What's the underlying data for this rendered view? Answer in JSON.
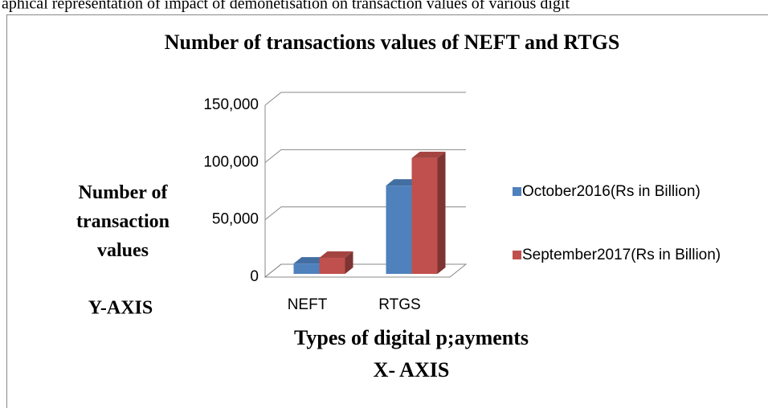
{
  "caption": "aphical representation of impact of demonetisation on transaction values of various digit",
  "chart_data": {
    "type": "bar3d",
    "title": "Number of transactions values of NEFT and RTGS",
    "y_label": "Number of transaction values",
    "y_axis_note": "Y-AXIS",
    "x_label": "Types of digital p;ayments",
    "x_axis_note": "X- AXIS",
    "categories": [
      "NEFT",
      "RTGS"
    ],
    "series": [
      {
        "name": "October2016(Rs in Billion)",
        "color": "#4f81bd",
        "values": [
          9000,
          77000
        ]
      },
      {
        "name": "September2017(Rs in Billion)",
        "color": "#c0504d",
        "values": [
          14000,
          101000
        ]
      }
    ],
    "ylim": [
      0,
      150000
    ],
    "yticks": [
      0,
      {
        "value": 50000,
        "label": "50,000"
      },
      {
        "value": 100000,
        "label": "100,000"
      },
      {
        "value": 150000,
        "label": "150,000"
      }
    ],
    "grid": true,
    "legend": "right"
  }
}
